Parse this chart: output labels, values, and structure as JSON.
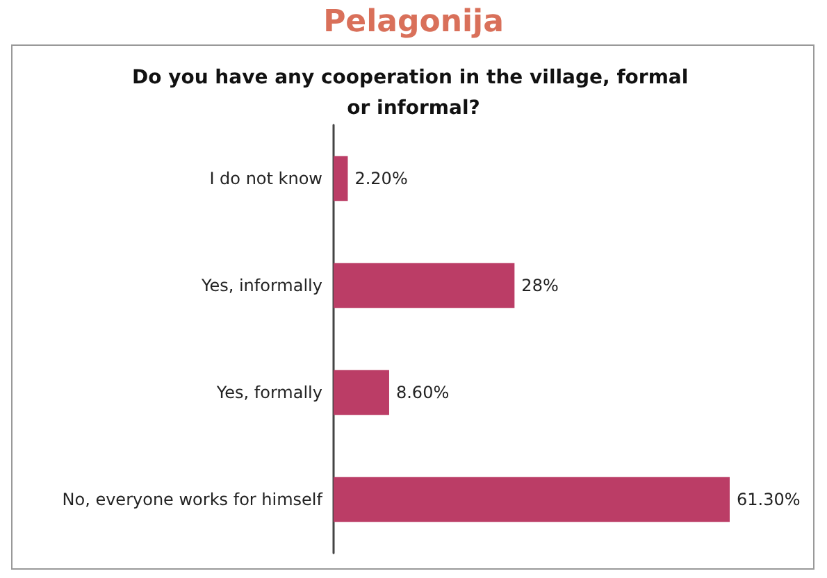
{
  "chart_data": {
    "type": "bar",
    "orientation": "horizontal",
    "title": "Pelagonija",
    "subtitle": "Do you have any cooperation in the village, formal or informal?",
    "categories": [
      "I do not know",
      "Yes, informally",
      "Yes, formally",
      "No, everyone works for himself"
    ],
    "values": [
      2.2,
      28,
      8.6,
      61.3
    ],
    "color": "#bb3d66",
    "value_labels": [
      "2.20%",
      "28%",
      "8.60%",
      "61.30%"
    ],
    "tick_labels": "y"
  }
}
